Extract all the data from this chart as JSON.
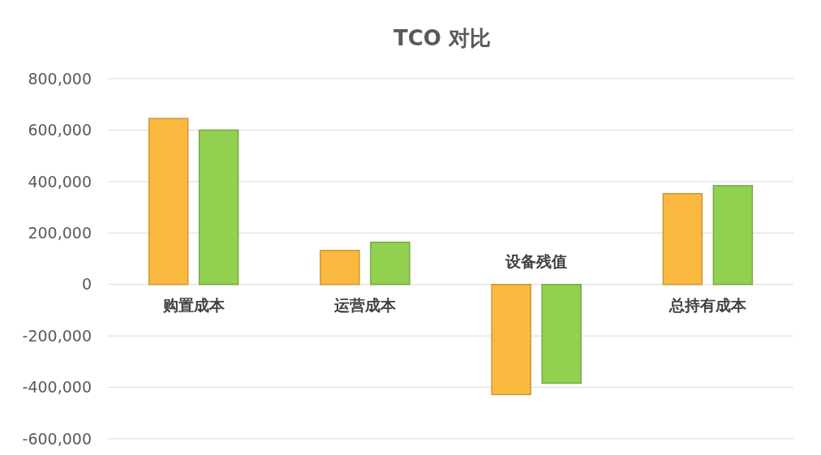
{
  "chart_data": {
    "type": "bar",
    "title": "TCO 对比",
    "categories": [
      "购置成本",
      "运营成本",
      "设备残值",
      "总持有成本"
    ],
    "series": [
      {
        "color": "#fbb940",
        "values": [
          645000,
          132000,
          -428000,
          353000
        ]
      },
      {
        "color": "#92d050",
        "values": [
          600000,
          164000,
          -384000,
          384000
        ]
      }
    ],
    "ylim": [
      -600000,
      800000
    ],
    "yticks": [
      {
        "value": -600000,
        "label": "-600,000"
      },
      {
        "value": -400000,
        "label": "-400,000"
      },
      {
        "value": -200000,
        "label": "-200,000"
      },
      0,
      {
        "value": 200000,
        "label": "200,000"
      },
      {
        "value": 400000,
        "label": "400,000"
      },
      {
        "value": 600000,
        "label": "600,000"
      },
      {
        "value": 800000,
        "label": "800,000"
      }
    ],
    "grid": true
  }
}
